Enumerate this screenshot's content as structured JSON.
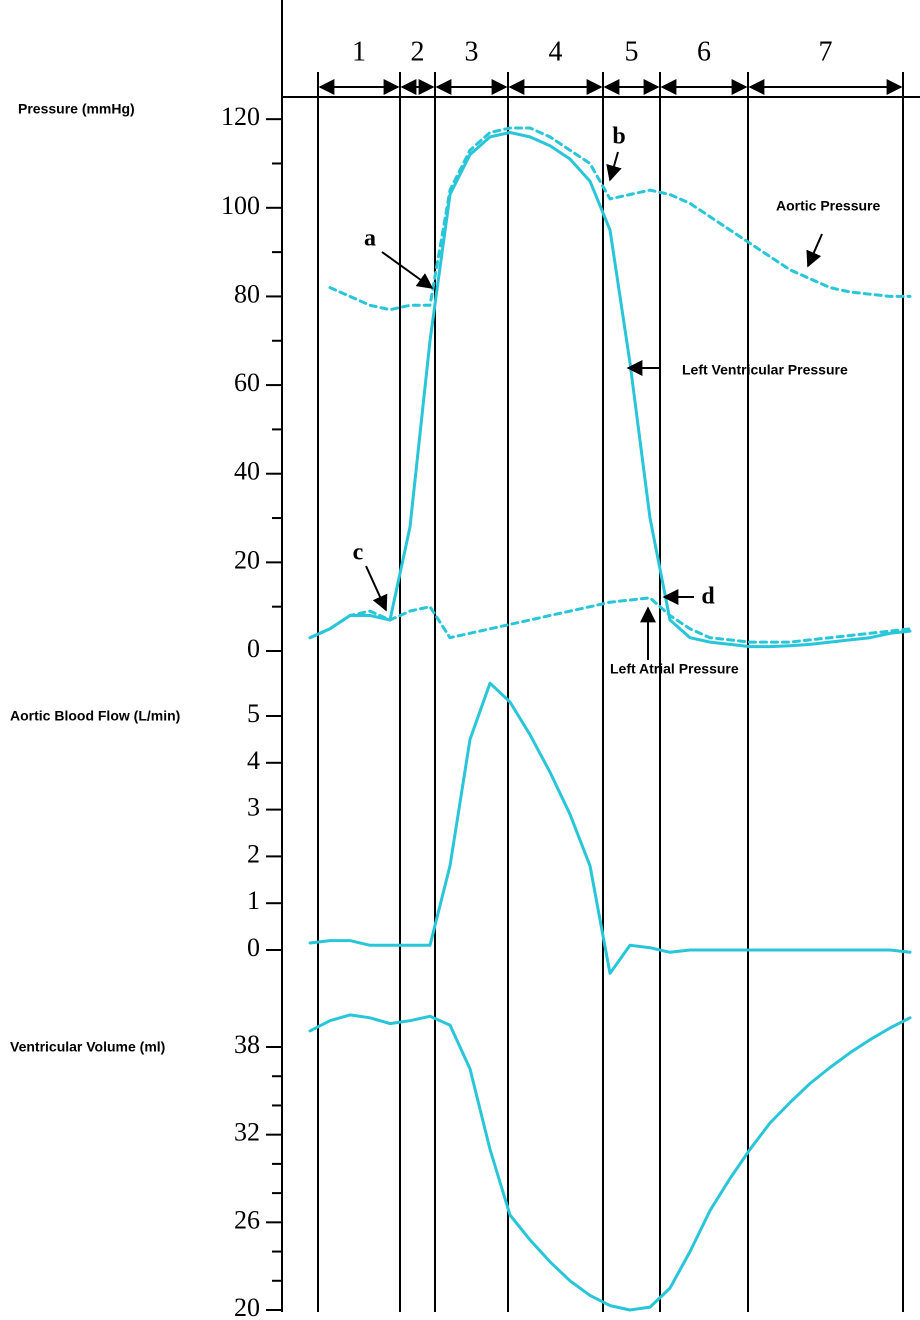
{
  "chart_data": [
    {
      "type": "line",
      "ylabel": "Pressure (mmHg)",
      "phases": [
        "1",
        "2",
        "3",
        "4",
        "5",
        "6",
        "7"
      ],
      "annotations": [
        "a",
        "b",
        "c",
        "d"
      ],
      "categories": [
        null,
        null,
        null,
        null,
        null,
        null,
        null,
        null,
        null,
        null,
        null,
        null,
        null,
        null,
        null,
        null,
        null,
        null,
        null,
        null,
        null,
        null,
        null,
        null,
        null,
        null,
        null,
        null,
        null,
        null,
        null
      ],
      "ylim": [
        0,
        125
      ],
      "yticks": [
        0,
        20,
        40,
        60,
        80,
        100,
        120
      ],
      "minor_yticks": [
        10,
        30,
        50,
        70,
        90,
        110
      ],
      "series": [
        {
          "name": "Left Ventricular Pressure",
          "color": "#29c5d8",
          "line_style": "solid",
          "values": [
            3,
            5,
            8,
            8,
            7,
            28,
            70,
            103,
            112,
            116,
            117,
            116,
            114,
            111,
            106,
            95,
            65,
            30,
            7,
            3,
            2,
            1.5,
            1,
            1,
            1.2,
            1.5,
            2,
            2.5,
            3,
            4,
            4.5
          ]
        },
        {
          "name": "Aortic Pressure",
          "color": "#29c5d8",
          "line_style": "dashed",
          "values": [
            null,
            82,
            80,
            78,
            77,
            78,
            78,
            104,
            113,
            117,
            118,
            118,
            116,
            113,
            110,
            102,
            103,
            104,
            103,
            101,
            98,
            95,
            92,
            89,
            86,
            84,
            82,
            81,
            80.5,
            80,
            80
          ]
        },
        {
          "name": "Left Atrial Pressure",
          "color": "#29c5d8",
          "line_style": "dashed",
          "values": [
            3,
            5,
            8,
            9,
            7,
            9,
            10,
            3,
            4,
            5,
            6,
            7,
            8,
            9,
            10,
            11,
            11.5,
            12,
            8,
            5,
            3,
            2.5,
            2,
            2,
            2,
            2.5,
            3,
            3.5,
            4,
            4.5,
            5
          ]
        }
      ]
    },
    {
      "type": "line",
      "ylabel": "Aortic Blood Flow (L/min)",
      "categories": [
        null,
        null,
        null,
        null,
        null,
        null,
        null,
        null,
        null,
        null,
        null,
        null,
        null,
        null,
        null,
        null,
        null,
        null,
        null,
        null,
        null,
        null,
        null,
        null,
        null,
        null,
        null,
        null,
        null,
        null,
        null
      ],
      "ylim": [
        0,
        5
      ],
      "yticks": [
        0,
        1,
        2,
        3,
        4,
        5
      ],
      "series": [
        {
          "name": null,
          "color": "#29c5d8",
          "line_style": "solid",
          "values": [
            0.15,
            0.2,
            0.2,
            0.1,
            0.1,
            0.1,
            0.1,
            1.8,
            4.5,
            5.7,
            5.3,
            4.6,
            3.8,
            2.9,
            1.8,
            -0.5,
            0.1,
            0.05,
            -0.05,
            0,
            0,
            0,
            0,
            0,
            0,
            0,
            0,
            0,
            0,
            0,
            -0.05
          ]
        }
      ]
    },
    {
      "type": "line",
      "ylabel": "Ventricular Volume (ml)",
      "categories": [
        null,
        null,
        null,
        null,
        null,
        null,
        null,
        null,
        null,
        null,
        null,
        null,
        null,
        null,
        null,
        null,
        null,
        null,
        null,
        null,
        null,
        null,
        null,
        null,
        null,
        null,
        null,
        null,
        null,
        null,
        null
      ],
      "ylim": [
        20,
        38
      ],
      "yticks": [
        20,
        26,
        32,
        38
      ],
      "minor_yticks": [
        22,
        24,
        28,
        30,
        34,
        36
      ],
      "series": [
        {
          "name": null,
          "color": "#29c5d8",
          "line_style": "solid",
          "values": [
            39.1,
            39.8,
            40.2,
            40,
            39.6,
            39.8,
            40.1,
            39.5,
            36.5,
            31,
            26.5,
            24.8,
            23.3,
            22,
            21,
            20.3,
            20,
            20.2,
            21.5,
            24,
            26.8,
            29,
            31,
            32.8,
            34.2,
            35.5,
            36.6,
            37.6,
            38.5,
            39.3,
            40
          ]
        }
      ]
    }
  ]
}
